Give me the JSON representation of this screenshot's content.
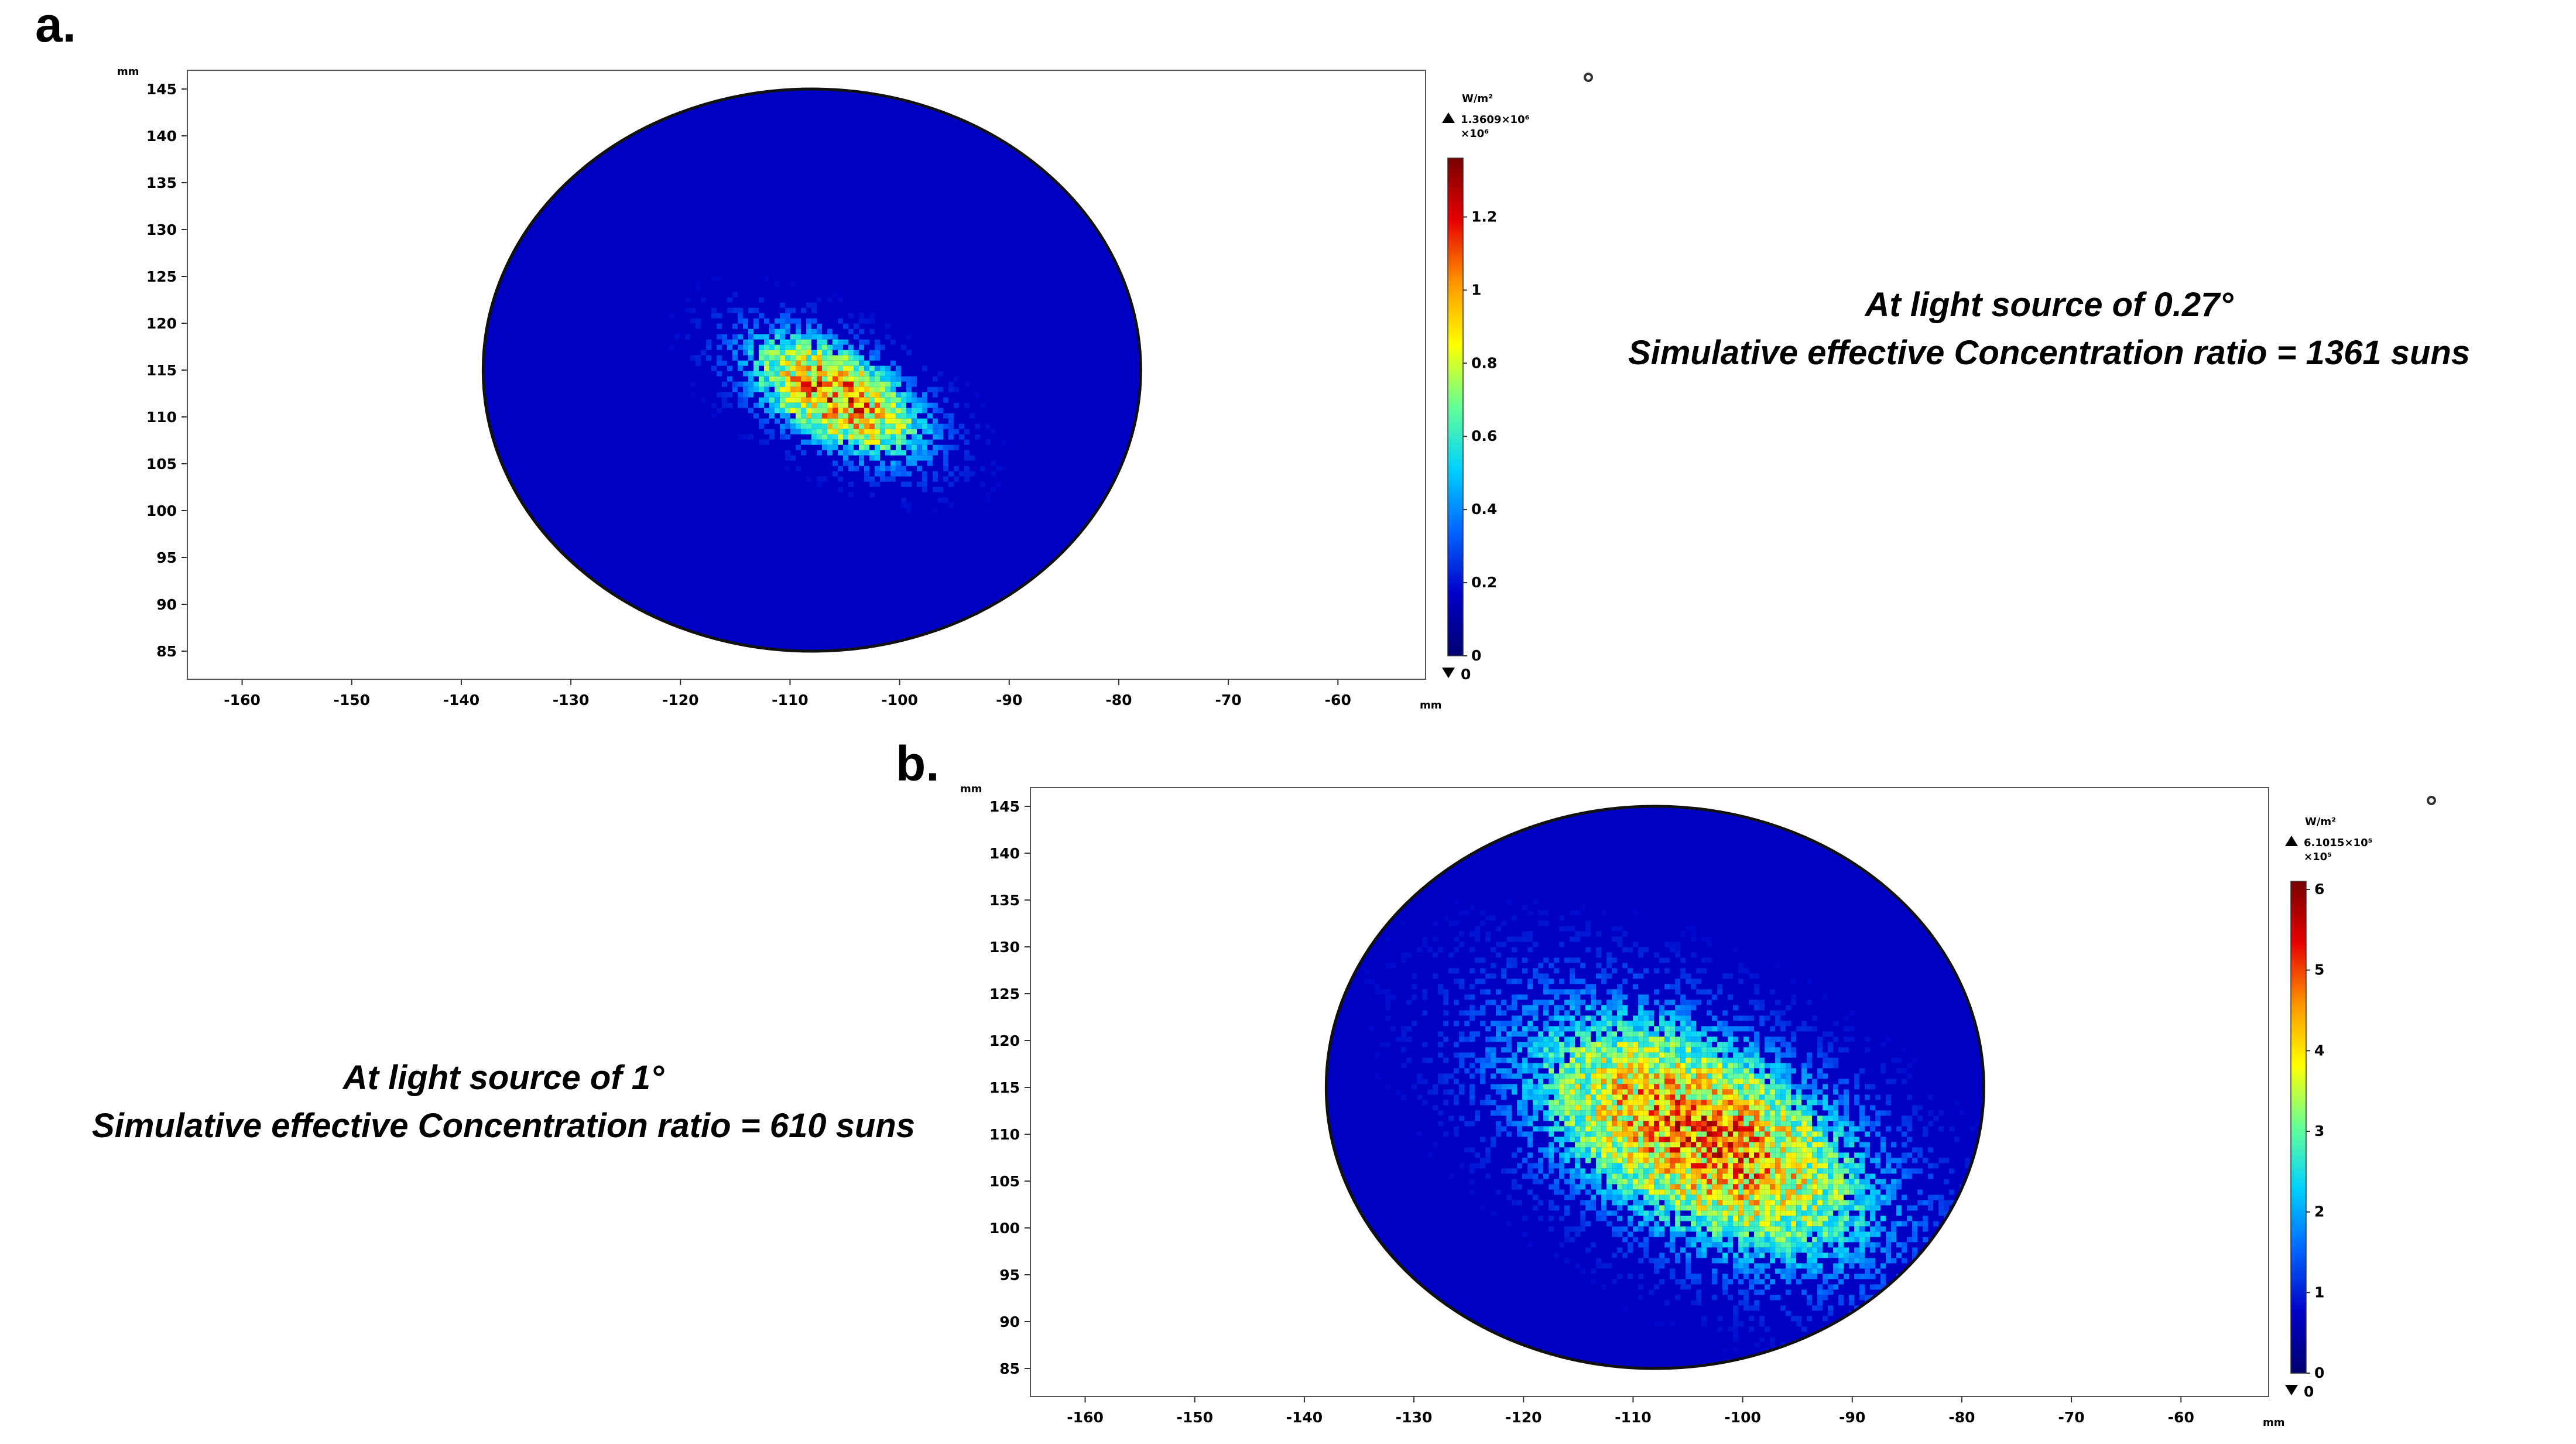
{
  "panel_a": {
    "label": "a.",
    "caption_line1": "At light source of 0.27°",
    "caption_line2": "Simulative effective Concentration ratio = 1361 suns"
  },
  "panel_b": {
    "label": "b.",
    "caption_line1": "At light source of 1°",
    "caption_line2": "Simulative effective Concentration ratio = 610 suns"
  },
  "chart_data": [
    {
      "type": "heatmap",
      "id": "a",
      "x_unit": "mm",
      "y_unit": "mm",
      "xlim": [
        -165,
        -52
      ],
      "ylim": [
        82,
        147
      ],
      "x_ticks": [
        -160,
        -150,
        -140,
        -130,
        -120,
        -110,
        -100,
        -90,
        -80,
        -70,
        -60
      ],
      "y_ticks": [
        85,
        90,
        95,
        100,
        105,
        110,
        115,
        120,
        125,
        130,
        135,
        140,
        145
      ],
      "disk": {
        "center_x": -108,
        "center_y": 115,
        "radius_x": 30,
        "radius_y": 30
      },
      "spot": {
        "center_x": -106,
        "center_y": 112.5,
        "sigma_major": 6.5,
        "sigma_minor": 3.2,
        "angle_deg": -28
      },
      "colorbar": {
        "unit": "W/m²",
        "max_label": "1.3609×10⁶",
        "multiplier": "×10⁶",
        "min_label": "0",
        "max": 1.3609,
        "ticks": [
          0,
          0.2,
          0.4,
          0.6,
          0.8,
          1,
          1.2
        ],
        "tick_labels": [
          "0",
          "0.2",
          "0.4",
          "0.6",
          "0.8",
          "1",
          "1.2"
        ],
        "colormap": [
          "#000070",
          "#0000c8",
          "#0064ff",
          "#00d2ff",
          "#64ff96",
          "#ffff00",
          "#ff9600",
          "#e60000",
          "#780000"
        ]
      }
    },
    {
      "type": "heatmap",
      "id": "b",
      "x_unit": "mm",
      "y_unit": "mm",
      "xlim": [
        -165,
        -52
      ],
      "ylim": [
        82,
        147
      ],
      "x_ticks": [
        -160,
        -150,
        -140,
        -130,
        -120,
        -110,
        -100,
        -90,
        -80,
        -70,
        -60
      ],
      "y_ticks": [
        85,
        90,
        95,
        100,
        105,
        110,
        115,
        120,
        125,
        130,
        135,
        140,
        145
      ],
      "disk": {
        "center_x": -108,
        "center_y": 115,
        "radius_x": 30,
        "radius_y": 30
      },
      "spot": {
        "center_x": -104,
        "center_y": 110,
        "sigma_major": 13,
        "sigma_minor": 6.5,
        "angle_deg": -28
      },
      "colorbar": {
        "unit": "W/m²",
        "max_label": "6.1015×10⁵",
        "multiplier": "×10⁵",
        "min_label": "0",
        "max": 6.1015,
        "ticks": [
          0,
          1,
          2,
          3,
          4,
          5,
          6
        ],
        "tick_labels": [
          "0",
          "1",
          "2",
          "3",
          "4",
          "5",
          "6"
        ],
        "colormap": [
          "#000070",
          "#0000c8",
          "#0064ff",
          "#00d2ff",
          "#64ff96",
          "#ffff00",
          "#ff9600",
          "#e60000",
          "#780000"
        ]
      }
    }
  ]
}
